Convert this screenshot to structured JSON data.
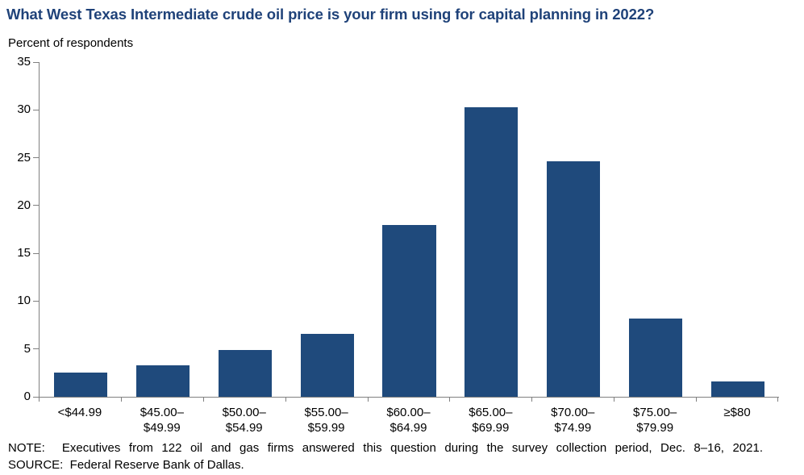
{
  "title": "What West Texas Intermediate crude oil price is your firm using for capital planning in 2022?",
  "subtitle": "Percent of respondents",
  "note": "NOTE:  Executives from 122 oil and gas firms answered this question during the survey collection period, Dec. 8–16, 2021.",
  "source": "SOURCE:  Federal Reserve Bank of Dallas.",
  "colors": {
    "bar": "#1f4a7c",
    "title": "#1f4279",
    "axis": "#808080",
    "text": "#000000"
  },
  "chart_data": {
    "type": "bar",
    "title": "What West Texas Intermediate crude oil price is your firm using for capital planning in 2022?",
    "subtitle": "Percent of respondents",
    "categories": [
      "<$44.99",
      "$45.00–\n$49.99",
      "$50.00–\n$54.99",
      "$55.00–\n$59.99",
      "$60.00–\n$64.99",
      "$65.00–\n$69.99",
      "$70.00–\n$74.99",
      "$75.00–\n$79.99",
      "≥$80"
    ],
    "values": [
      2.5,
      3.3,
      4.9,
      6.6,
      18.0,
      30.3,
      24.6,
      8.2,
      1.6
    ],
    "xlabel": "",
    "ylabel": "Percent of respondents",
    "ylim": [
      0,
      35
    ],
    "yticks": [
      0,
      5,
      10,
      15,
      20,
      25,
      30,
      35
    ],
    "grid": false,
    "legend": false,
    "bar_color": "#1f4a7c",
    "bar_width_fraction": 0.648,
    "note": "NOTE: Executives from 122 oil and gas firms answered this question during the survey collection period, Dec. 8–16, 2021.",
    "source": "SOURCE: Federal Reserve Bank of Dallas."
  }
}
